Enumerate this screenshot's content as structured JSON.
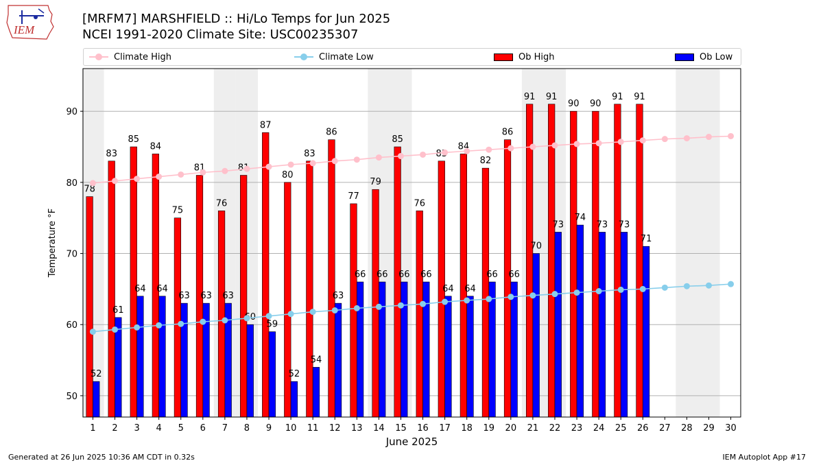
{
  "header": {
    "title_line1": "[MRFM7] MARSHFIELD :: Hi/Lo Temps for Jun 2025",
    "title_line2": "NCEI 1991-2020 Climate Site: USC00235307",
    "logo_text": "IEM"
  },
  "legend": {
    "climate_high": "Climate High",
    "climate_low": "Climate Low",
    "ob_high": "Ob High",
    "ob_low": "Ob Low"
  },
  "footer": {
    "generated": "Generated at 26 Jun 2025 10:36 AM CDT in 0.32s",
    "app": "IEM Autoplot App #17"
  },
  "colors": {
    "ob_high": "#ff0000",
    "ob_low": "#0000ff",
    "climate_high": "#ffc0cb",
    "climate_low": "#87ceeb",
    "weekend_shade": "#eeeeee",
    "grid": "#b0b0b0"
  },
  "chart_data": {
    "type": "bar",
    "xlabel": "June 2025",
    "ylabel": "Temperature °F",
    "ylim": [
      47,
      96
    ],
    "yticks": [
      50,
      60,
      70,
      80,
      90
    ],
    "grid": "horizontal",
    "legend_position": "top",
    "days": [
      1,
      2,
      3,
      4,
      5,
      6,
      7,
      8,
      9,
      10,
      11,
      12,
      13,
      14,
      15,
      16,
      17,
      18,
      19,
      20,
      21,
      22,
      23,
      24,
      25,
      26,
      27,
      28,
      29,
      30
    ],
    "weekend_shaded_days": [
      1,
      7,
      8,
      14,
      15,
      21,
      22,
      28,
      29
    ],
    "ob_high": [
      78,
      83,
      85,
      84,
      75,
      81,
      76,
      81,
      87,
      80,
      83,
      86,
      77,
      79,
      85,
      76,
      83,
      84,
      82,
      86,
      91,
      91,
      90,
      90,
      91,
      91
    ],
    "ob_low": [
      52,
      61,
      64,
      64,
      63,
      63,
      63,
      60,
      59,
      52,
      54,
      63,
      66,
      66,
      66,
      66,
      64,
      64,
      66,
      66,
      70,
      73,
      74,
      73,
      73,
      71
    ],
    "climate_high": [
      79.9,
      80.2,
      80.5,
      80.8,
      81.1,
      81.4,
      81.6,
      81.9,
      82.2,
      82.5,
      82.7,
      83.0,
      83.2,
      83.5,
      83.7,
      83.9,
      84.2,
      84.4,
      84.6,
      84.8,
      85.0,
      85.2,
      85.4,
      85.5,
      85.7,
      85.9,
      86.1,
      86.2,
      86.4,
      86.5
    ],
    "climate_low": [
      59.0,
      59.3,
      59.6,
      59.9,
      60.1,
      60.4,
      60.6,
      60.9,
      61.2,
      61.5,
      61.8,
      62.0,
      62.3,
      62.5,
      62.7,
      62.9,
      63.2,
      63.4,
      63.6,
      63.9,
      64.1,
      64.3,
      64.5,
      64.7,
      64.9,
      65.0,
      65.2,
      65.4,
      65.5,
      65.7
    ]
  }
}
